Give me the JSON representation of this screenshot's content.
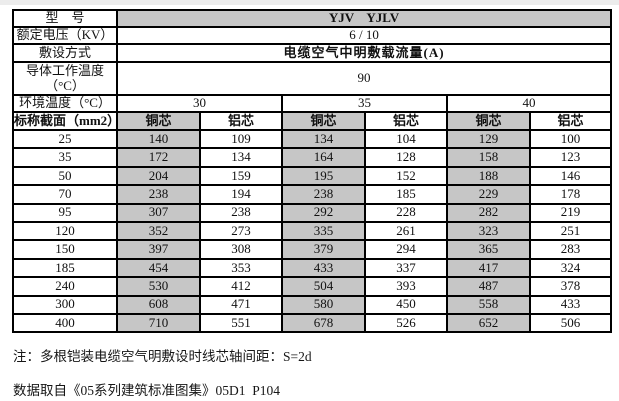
{
  "colors": {
    "cell_gray": "#c6c6c6",
    "border": "#000000",
    "background": "#ffffff"
  },
  "table": {
    "model_label": "型　号",
    "model_value": "YJV    YJLV",
    "voltage_label": "额定电压（KV）",
    "voltage_value": "6 / 10",
    "laying_label": "敷设方式",
    "laying_value": "电缆空气中明敷载流量(A)",
    "conductor_temp_label": "导体工作温度（°C）",
    "conductor_temp_value": "90",
    "ambient_label": "环境温度（°C）",
    "ambient_temps": [
      "30",
      "35",
      "40"
    ],
    "section_label": "标称截面（mm2）",
    "core_headers": [
      "铜芯",
      "铝芯",
      "铜芯",
      "铝芯",
      "铜芯",
      "铝芯"
    ],
    "rows": [
      {
        "section": "25",
        "values": [
          "140",
          "109",
          "134",
          "104",
          "129",
          "100"
        ]
      },
      {
        "section": "35",
        "values": [
          "172",
          "134",
          "164",
          "128",
          "158",
          "123"
        ]
      },
      {
        "section": "50",
        "values": [
          "204",
          "159",
          "195",
          "152",
          "188",
          "146"
        ]
      },
      {
        "section": "70",
        "values": [
          "238",
          "194",
          "238",
          "185",
          "229",
          "178"
        ]
      },
      {
        "section": "95",
        "values": [
          "307",
          "238",
          "292",
          "228",
          "282",
          "219"
        ]
      },
      {
        "section": "120",
        "values": [
          "352",
          "273",
          "335",
          "261",
          "323",
          "251"
        ]
      },
      {
        "section": "150",
        "values": [
          "397",
          "308",
          "379",
          "294",
          "365",
          "283"
        ]
      },
      {
        "section": "185",
        "values": [
          "454",
          "353",
          "433",
          "337",
          "417",
          "324"
        ]
      },
      {
        "section": "240",
        "values": [
          "530",
          "412",
          "504",
          "393",
          "487",
          "378"
        ]
      },
      {
        "section": "300",
        "values": [
          "608",
          "471",
          "580",
          "450",
          "558",
          "433"
        ]
      },
      {
        "section": "400",
        "values": [
          "710",
          "551",
          "678",
          "526",
          "652",
          "506"
        ]
      }
    ]
  },
  "notes": {
    "note1": "注：多根铠装电缆空气明敷设时线芯轴间距：S=2d",
    "note2": "数据取自《05系列建筑标准图集》05D1  P104"
  }
}
